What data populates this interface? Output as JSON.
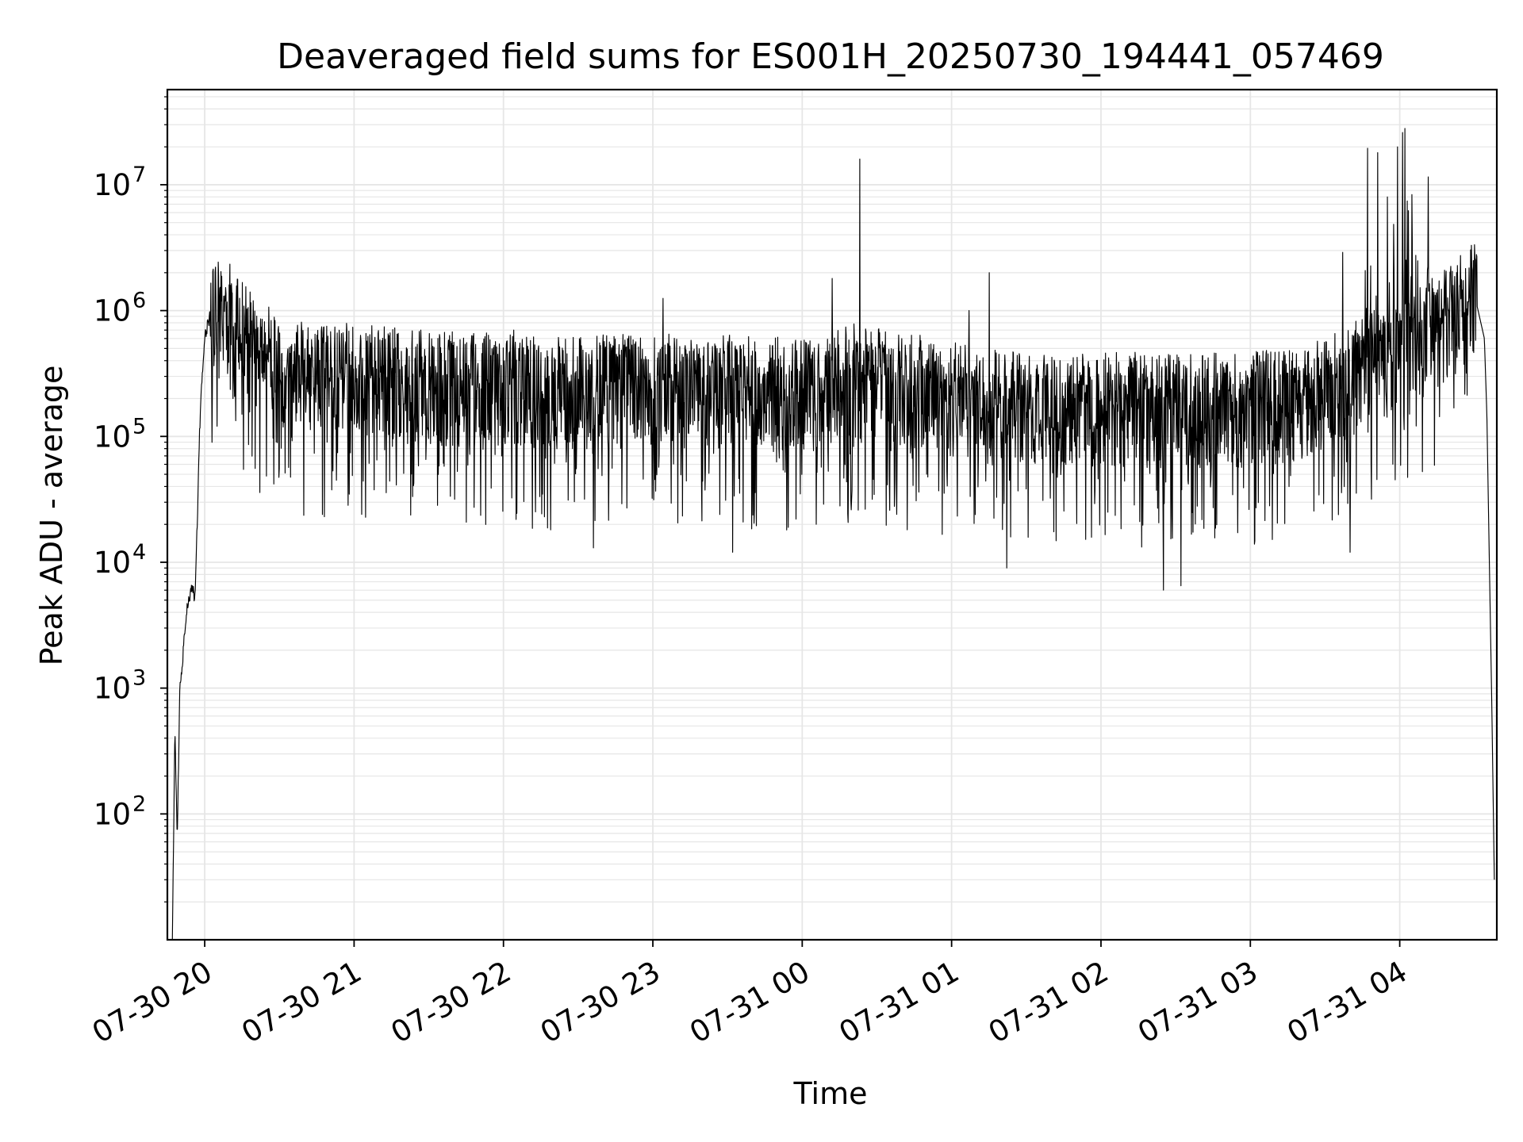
{
  "chart_data": {
    "type": "line",
    "title": "Deaveraged field sums for ES001H_20250730_194441_057469",
    "xlabel": "Time",
    "ylabel": "Peak ADU - average",
    "yscale": "log",
    "xlim": [
      "2025-07-30 19:45",
      "2025-07-31 04:39"
    ],
    "ylim": [
      10,
      57000000
    ],
    "x_ticks": [
      {
        "value": "2025-07-30 20:00",
        "label": "07-30 20"
      },
      {
        "value": "2025-07-30 21:00",
        "label": "07-30 21"
      },
      {
        "value": "2025-07-30 22:00",
        "label": "07-30 22"
      },
      {
        "value": "2025-07-30 23:00",
        "label": "07-30 23"
      },
      {
        "value": "2025-07-31 00:00",
        "label": "07-31 00"
      },
      {
        "value": "2025-07-31 01:00",
        "label": "07-31 01"
      },
      {
        "value": "2025-07-31 02:00",
        "label": "07-31 02"
      },
      {
        "value": "2025-07-31 03:00",
        "label": "07-31 03"
      },
      {
        "value": "2025-07-31 04:00",
        "label": "07-31 04"
      }
    ],
    "y_ticks": [
      {
        "value": 100,
        "base": "10",
        "exp": "2"
      },
      {
        "value": 1000,
        "base": "10",
        "exp": "3"
      },
      {
        "value": 10000,
        "base": "10",
        "exp": "4"
      },
      {
        "value": 100000,
        "base": "10",
        "exp": "5"
      },
      {
        "value": 1000000,
        "base": "10",
        "exp": "6"
      },
      {
        "value": 10000000,
        "base": "10",
        "exp": "7"
      }
    ],
    "grid": true,
    "line_color": "#000000",
    "grid_color": "#e6e6e6",
    "series": [
      {
        "x": [
          "2025-07-30 19:47",
          "2025-07-30 19:48",
          "2025-07-30 19:49",
          "2025-07-30 19:50",
          "2025-07-30 19:51",
          "2025-07-30 19:52",
          "2025-07-30 19:53",
          "2025-07-30 19:54",
          "2025-07-30 19:55",
          "2025-07-30 19:56",
          "2025-07-30 19:57",
          "2025-07-30 19:58",
          "2025-07-30 19:59",
          "2025-07-30 20:00",
          "2025-07-30 20:02",
          "2025-07-30 20:04",
          "2025-07-30 20:06",
          "2025-07-30 20:08",
          "2025-07-30 20:10",
          "2025-07-30 20:12",
          "2025-07-30 20:14",
          "2025-07-30 20:16",
          "2025-07-30 20:18",
          "2025-07-30 20:20",
          "2025-07-30 20:25",
          "2025-07-30 20:30",
          "2025-07-30 20:35",
          "2025-07-30 20:40",
          "2025-07-30 20:45",
          "2025-07-30 20:50",
          "2025-07-30 20:55",
          "2025-07-30 21:00",
          "2025-07-30 21:15",
          "2025-07-30 21:30",
          "2025-07-30 21:45",
          "2025-07-30 22:00",
          "2025-07-30 22:15",
          "2025-07-30 22:30",
          "2025-07-30 22:45",
          "2025-07-30 23:00",
          "2025-07-30 23:15",
          "2025-07-30 23:30",
          "2025-07-30 23:45",
          "2025-07-31 00:00",
          "2025-07-31 00:10",
          "2025-07-31 00:20",
          "2025-07-31 00:30",
          "2025-07-31 00:40",
          "2025-07-31 00:50",
          "2025-07-31 01:00",
          "2025-07-31 01:10",
          "2025-07-31 01:20",
          "2025-07-31 01:30",
          "2025-07-31 01:40",
          "2025-07-31 01:50",
          "2025-07-31 02:00",
          "2025-07-31 02:15",
          "2025-07-31 02:30",
          "2025-07-31 02:45",
          "2025-07-31 03:00",
          "2025-07-31 03:10",
          "2025-07-31 03:20",
          "2025-07-31 03:30",
          "2025-07-31 03:40",
          "2025-07-31 03:50",
          "2025-07-31 04:00",
          "2025-07-31 04:05",
          "2025-07-31 04:10",
          "2025-07-31 04:15",
          "2025-07-31 04:20",
          "2025-07-31 04:25",
          "2025-07-31 04:28",
          "2025-07-31 04:30",
          "2025-07-31 04:32",
          "2025-07-31 04:34",
          "2025-07-31 04:35",
          "2025-07-31 04:36",
          "2025-07-31 04:37",
          "2025-07-31 04:38"
        ],
        "y": [
          10,
          450,
          65,
          1000,
          1500,
          3000,
          4500,
          5500,
          6500,
          5000,
          20000,
          120000,
          300000,
          600000,
          900000,
          1100000,
          1150000,
          1050000,
          950000,
          900000,
          800000,
          650000,
          550000,
          500000,
          420000,
          380000,
          300000,
          320000,
          300000,
          290000,
          310000,
          300000,
          280000,
          270000,
          260000,
          250000,
          250000,
          240000,
          250000,
          260000,
          250000,
          245000,
          240000,
          230000,
          240000,
          300000,
          280000,
          260000,
          240000,
          220000,
          200000,
          200000,
          190000,
          190000,
          185000,
          180000,
          180000,
          170000,
          175000,
          180000,
          190000,
          200000,
          250000,
          300000,
          400000,
          500000,
          600000,
          650000,
          700000,
          900000,
          1100000,
          1300000,
          1350000,
          900000,
          600000,
          150000,
          10000,
          700,
          30
        ]
      }
    ],
    "spikes": [
      {
        "x": "2025-07-30 20:06",
        "y": 1500000
      },
      {
        "x": "2025-07-30 22:04",
        "y": 700000
      },
      {
        "x": "2025-07-30 23:04",
        "y": 1250000
      },
      {
        "x": "2025-07-31 00:12",
        "y": 1800000
      },
      {
        "x": "2025-07-31 00:23",
        "y": 16000000
      },
      {
        "x": "2025-07-31 01:07",
        "y": 1000000
      },
      {
        "x": "2025-07-31 01:15",
        "y": 2000000
      },
      {
        "x": "2025-07-31 03:37",
        "y": 2900000
      },
      {
        "x": "2025-07-31 03:47",
        "y": 19500000
      },
      {
        "x": "2025-07-31 03:51",
        "y": 18000000
      },
      {
        "x": "2025-07-31 03:55",
        "y": 8000000
      },
      {
        "x": "2025-07-31 03:59",
        "y": 20000000
      },
      {
        "x": "2025-07-31 04:01",
        "y": 26000000
      },
      {
        "x": "2025-07-31 04:02",
        "y": 28000000
      },
      {
        "x": "2025-07-31 04:05",
        "y": 3500000
      },
      {
        "x": "2025-07-31 04:13",
        "y": 1800000
      }
    ],
    "dips": [
      {
        "x": "2025-07-30 20:48",
        "y": 23000
      },
      {
        "x": "2025-07-30 21:03",
        "y": 24000
      },
      {
        "x": "2025-07-30 22:36",
        "y": 13000
      },
      {
        "x": "2025-07-30 23:32",
        "y": 12000
      },
      {
        "x": "2025-07-31 00:15",
        "y": 28000
      },
      {
        "x": "2025-07-31 01:22",
        "y": 9000
      },
      {
        "x": "2025-07-31 02:25",
        "y": 6000
      },
      {
        "x": "2025-07-31 02:32",
        "y": 6500
      },
      {
        "x": "2025-07-31 03:40",
        "y": 12000
      }
    ]
  }
}
